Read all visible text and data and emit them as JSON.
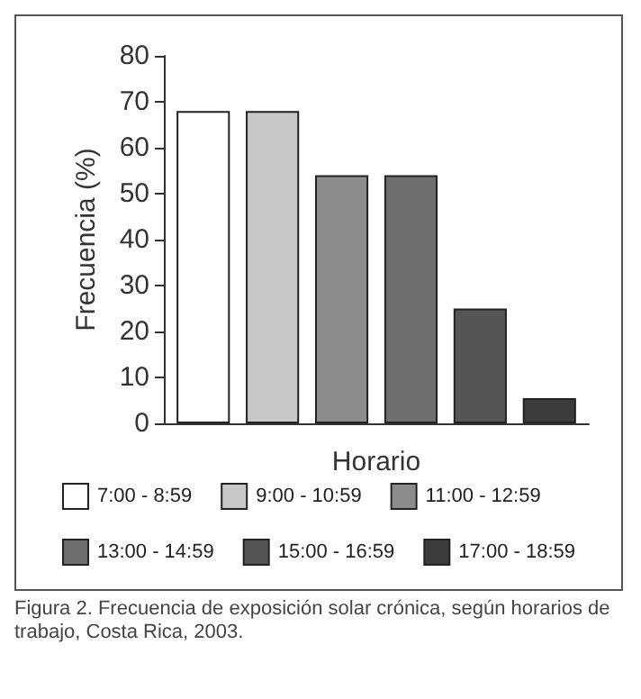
{
  "chart_data": {
    "type": "bar",
    "xlabel": "Horario",
    "ylabel": "Frecuencia (%)",
    "categories": [
      null
    ],
    "series": [
      {
        "name": "7:00 - 8:59",
        "color": "#ffffff",
        "values": [
          68
        ]
      },
      {
        "name": "9:00 - 10:59",
        "color": "#c8c8c8",
        "values": [
          68
        ]
      },
      {
        "name": "11:00 - 12:59",
        "color": "#8c8c8c",
        "values": [
          54
        ]
      },
      {
        "name": "13:00 - 14:59",
        "color": "#6e6e6e",
        "values": [
          54
        ]
      },
      {
        "name": "15:00 - 16:59",
        "color": "#555555",
        "values": [
          25
        ]
      },
      {
        "name": "17:00 - 18:59",
        "color": "#3c3c3c",
        "values": [
          5.5
        ]
      }
    ],
    "ylim": [
      0,
      80
    ],
    "yticks": [
      0,
      10,
      20,
      30,
      40,
      50,
      60,
      70,
      80
    ],
    "grid": false,
    "legend": "bottom",
    "tick_labels": "y",
    "annotations": [
      "Figura 2. Frecuencia de exposición solar crónica, según horarios de trabajo, Costa Rica, 2003."
    ]
  }
}
